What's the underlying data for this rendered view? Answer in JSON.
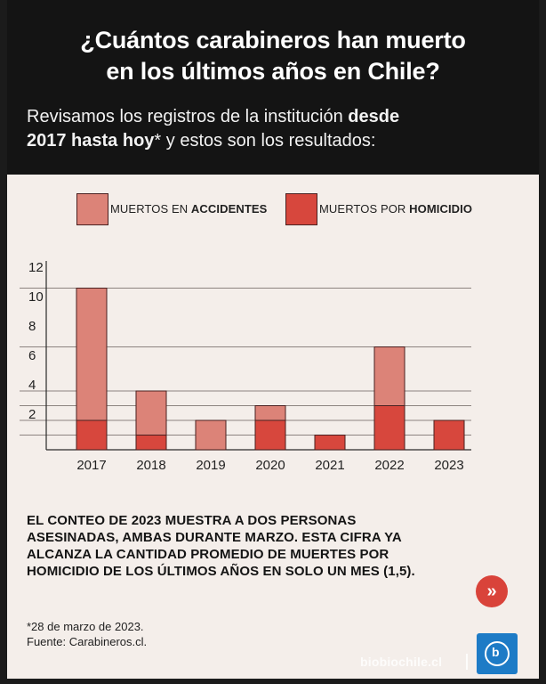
{
  "header": {
    "title_line1": "¿Cuántos carabineros han muerto",
    "title_line2": "en los últimos años en Chile?",
    "subtitle_part1": "Revisamos los registros de la institución ",
    "subtitle_bold1": "desde",
    "subtitle_bold2": "2017 hasta hoy",
    "subtitle_part2": "* y estos son los resultados:"
  },
  "legend": {
    "accidents_prefix": "MUERTOS EN ",
    "accidents_bold": "ACCIDENTES",
    "homicide_prefix": "MUERTOS POR ",
    "homicide_bold": "HOMICIDIO"
  },
  "colors": {
    "accidents": "#dc8378",
    "homicide": "#d7473d",
    "bar_border": "#4a2020",
    "background": "#f4eeea",
    "header": "#141414"
  },
  "chart_data": {
    "type": "bar",
    "stacked": true,
    "title": "",
    "xlabel": "",
    "ylabel": "",
    "ylim": [
      0,
      12
    ],
    "yticks": [
      "2",
      "4",
      "6",
      "8",
      "10",
      "12"
    ],
    "categories": [
      "2017",
      "2018",
      "2019",
      "2020",
      "2021",
      "2022",
      "2023"
    ],
    "series": [
      {
        "name": "MUERTOS POR HOMICIDIO",
        "values": [
          2,
          1,
          0,
          2,
          1,
          3,
          2
        ]
      },
      {
        "name": "MUERTOS EN ACCIDENTES",
        "values": [
          9,
          3,
          2,
          1,
          0,
          4,
          0
        ]
      }
    ]
  },
  "note": {
    "line1": "EL CONTEO DE 2023 MUESTRA A DOS PERSONAS",
    "line2": "ASESINADAS, AMBAS DURANTE MARZO. ESTA CIFRA YA",
    "line3": "ALCANZA LA CANTIDAD PROMEDIO DE MUERTES POR",
    "line4": "HOMICIDIO DE LOS ÚLTIMOS AÑOS EN SOLO UN MES (1,5)."
  },
  "arrow_glyph": "»",
  "footnote": {
    "date": "*28 de marzo de 2023.",
    "source": "Fuente: Carabineros.cl."
  },
  "brand": {
    "name": "biobiochile.cl",
    "logo_glyph": "b"
  }
}
